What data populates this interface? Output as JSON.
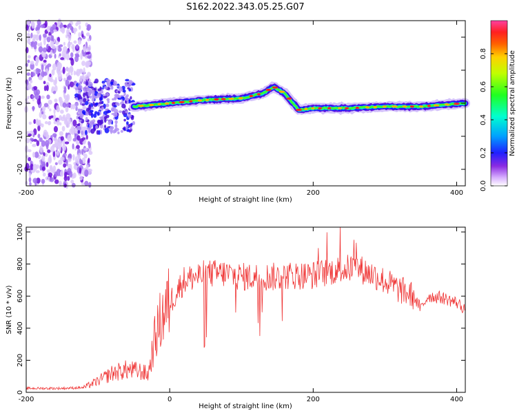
{
  "title": "S162.2022.343.05.25.G07",
  "chart_data": [
    {
      "type": "heatmap",
      "xlabel": "Height of straight line (km)",
      "ylabel": "Frequency (Hz)",
      "xlim": [
        -200,
        412
      ],
      "ylim": [
        -25,
        25
      ],
      "xticks": [
        "-200",
        "0",
        "200",
        "400"
      ],
      "yticks": [
        "-20",
        "-10",
        "0",
        "10",
        "20"
      ],
      "colorbar": {
        "label": "Normalized spectral amplitude",
        "range": [
          0,
          1
        ],
        "ticks": [
          "0.0",
          "0.2",
          "0.4",
          "0.6",
          "0.8"
        ]
      },
      "ridge_frequency": [
        [
          -50,
          -1
        ],
        [
          0,
          0
        ],
        [
          50,
          1
        ],
        [
          100,
          1.5
        ],
        [
          130,
          3
        ],
        [
          145,
          5
        ],
        [
          160,
          3
        ],
        [
          180,
          -2
        ],
        [
          200,
          -1.5
        ],
        [
          250,
          -1.5
        ],
        [
          300,
          -1
        ],
        [
          350,
          -1
        ],
        [
          410,
          0
        ]
      ],
      "noise_region_x": [
        -200,
        -120
      ]
    },
    {
      "type": "line",
      "xlabel": "Height of straight line (km)",
      "ylabel": "SNR (10 * v/v)",
      "xlim": [
        -200,
        412
      ],
      "ylim": [
        0,
        1030
      ],
      "xticks": [
        "-200",
        "0",
        "200",
        "400"
      ],
      "yticks": [
        "0",
        "200",
        "400",
        "600",
        "800",
        "1000"
      ],
      "series": [
        {
          "color": "#ef3333",
          "x": [
            -200,
            -150,
            -120,
            -100,
            -80,
            -60,
            -40,
            -30,
            -20,
            -10,
            0,
            20,
            50,
            80,
            100,
            130,
            150,
            170,
            200,
            230,
            260,
            290,
            320,
            340,
            350,
            360,
            380,
            400,
            412
          ],
          "y": [
            25,
            25,
            30,
            70,
            120,
            140,
            130,
            110,
            350,
            480,
            560,
            700,
            740,
            740,
            720,
            720,
            720,
            730,
            730,
            760,
            780,
            720,
            640,
            600,
            520,
            600,
            590,
            560,
            520
          ]
        }
      ]
    }
  ]
}
